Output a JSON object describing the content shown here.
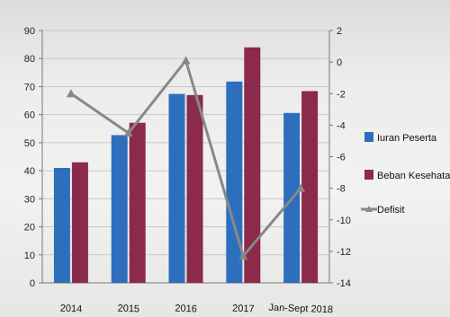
{
  "chart_data": {
    "type": "bar",
    "title": "",
    "xlabel": "",
    "ylabel": "",
    "categories": [
      "2014",
      "2015",
      "2016",
      "2017",
      "Jan-Sept 2018"
    ],
    "series": [
      {
        "name": "Iuran Peserta",
        "type": "bar",
        "axis": "left",
        "color": "#2e6fbd",
        "values": [
          41,
          52.7,
          67.4,
          71.8,
          60.6
        ]
      },
      {
        "name": "Beban Kesehatan",
        "type": "bar",
        "axis": "left",
        "color": "#8b2a4a",
        "values": [
          43,
          57.1,
          67,
          84,
          68.4
        ]
      },
      {
        "name": "Defisit",
        "type": "line",
        "axis": "right",
        "color": "#888888",
        "values": [
          -2,
          -4.5,
          0.1,
          -12.3,
          -8
        ]
      }
    ],
    "ylim_left": [
      0,
      90
    ],
    "yticks_left": [
      "0",
      "10",
      "20",
      "30",
      "40",
      "50",
      "60",
      "70",
      "80",
      "90"
    ],
    "ylim_right": [
      -14,
      2
    ],
    "yticks_right": [
      "-14",
      "-12",
      "-10",
      "-8",
      "-6",
      "-4",
      "-2",
      "0",
      "2"
    ],
    "grid": true,
    "legend_position": "right"
  }
}
